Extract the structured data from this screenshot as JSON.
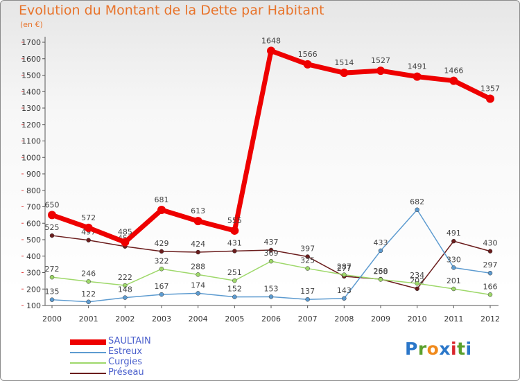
{
  "title": "Evolution du Montant de la Dette par Habitant",
  "subtitle": "(en €)",
  "logo": {
    "text": "Proxiti",
    "colors": [
      "#2b77c9",
      "#5aa02c",
      "#f08a1c",
      "#2b77c9",
      "#d9252b",
      "#5aa02c",
      "#2b77c9"
    ]
  },
  "chart_data": {
    "type": "line",
    "title": "Evolution du Montant de la Dette par Habitant",
    "subtitle": "(en €)",
    "x": [
      "2000",
      "2001",
      "2002",
      "2003",
      "2004",
      "2005",
      "2006",
      "2007",
      "2008",
      "2009",
      "2010",
      "2011",
      "2012"
    ],
    "yticks": [
      100,
      200,
      300,
      400,
      500,
      600,
      700,
      800,
      900,
      1000,
      1100,
      1200,
      1300,
      1400,
      1500,
      1600,
      1700
    ],
    "ylim": [
      100,
      1700
    ],
    "grid": false,
    "legend_position": "bottom-left",
    "series": [
      {
        "name": "SAULTAIN",
        "color": "#ee0000",
        "values": [
          650,
          572,
          485,
          681,
          613,
          555,
          1648,
          1566,
          1514,
          1527,
          1491,
          1466,
          1357
        ]
      },
      {
        "name": "Estreux",
        "color": "#5d9bd0",
        "values": [
          135,
          122,
          148,
          167,
          174,
          152,
          153,
          137,
          143,
          433,
          682,
          330,
          297
        ]
      },
      {
        "name": "Curgies",
        "color": "#9ed86a",
        "values": [
          272,
          246,
          222,
          322,
          288,
          251,
          369,
          325,
          287,
          258,
          234,
          201,
          166
        ]
      },
      {
        "name": "Préseau",
        "color": "#6b1d1d",
        "values": [
          525,
          497,
          459,
          429,
          424,
          431,
          437,
          397,
          277,
          260,
          202,
          491,
          430
        ]
      }
    ]
  }
}
